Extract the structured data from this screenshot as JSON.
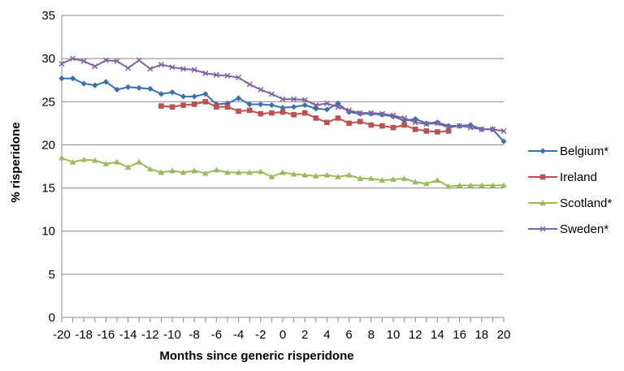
{
  "chart_data": {
    "type": "line",
    "xlabel": "Months since generic risperidone",
    "ylabel": "% risperidone",
    "ylim": [
      0,
      35
    ],
    "yticks": [
      0,
      5,
      10,
      15,
      20,
      25,
      30,
      35
    ],
    "xlim": [
      -20,
      20
    ],
    "xticks": [
      -20,
      -18,
      -16,
      -14,
      -12,
      -10,
      -8,
      -6,
      -4,
      -2,
      0,
      2,
      4,
      6,
      8,
      10,
      12,
      14,
      16,
      18,
      20
    ],
    "grid": "horizontal",
    "legend_position": "right",
    "series": [
      {
        "name": "Belgium*",
        "color": "#3c6fae",
        "marker": "diamond",
        "x": [
          -20,
          -19,
          -18,
          -17,
          -16,
          -15,
          -14,
          -13,
          -12,
          -11,
          -10,
          -9,
          -8,
          -7,
          -6,
          -5,
          -4,
          -3,
          -2,
          -1,
          0,
          1,
          2,
          3,
          4,
          5,
          6,
          7,
          8,
          9,
          10,
          11,
          12,
          13,
          14,
          15,
          16,
          17,
          18,
          19,
          20
        ],
        "values": [
          27.7,
          27.7,
          27.1,
          26.9,
          27.3,
          26.4,
          26.7,
          26.6,
          26.5,
          25.9,
          26.1,
          25.6,
          25.6,
          25.9,
          24.7,
          24.8,
          25.4,
          24.7,
          24.7,
          24.6,
          24.3,
          24.4,
          24.6,
          24.2,
          24.1,
          24.8,
          23.8,
          23.6,
          23.6,
          23.5,
          23.3,
          22.8,
          23.0,
          22.5,
          22.6,
          22.2,
          22.2,
          22.3,
          21.8,
          21.8,
          20.4
        ]
      },
      {
        "name": "Ireland",
        "color": "#c0504d",
        "marker": "square",
        "x": [
          -11,
          -10,
          -9,
          -8,
          -7,
          -6,
          -5,
          -4,
          -3,
          -2,
          -1,
          0,
          1,
          2,
          3,
          4,
          5,
          6,
          7,
          8,
          9,
          10,
          11,
          12,
          13,
          14,
          15
        ],
        "values": [
          24.5,
          24.4,
          24.6,
          24.7,
          25.0,
          24.4,
          24.4,
          23.9,
          24.0,
          23.6,
          23.7,
          23.8,
          23.5,
          23.7,
          23.1,
          22.6,
          23.1,
          22.5,
          22.7,
          22.3,
          22.2,
          22.0,
          22.3,
          21.8,
          21.6,
          21.5,
          21.6
        ]
      },
      {
        "name": "Scotland*",
        "color": "#9bbb59",
        "marker": "triangle",
        "x": [
          -20,
          -19,
          -18,
          -17,
          -16,
          -15,
          -14,
          -13,
          -12,
          -11,
          -10,
          -9,
          -8,
          -7,
          -6,
          -5,
          -4,
          -3,
          -2,
          -1,
          0,
          1,
          2,
          3,
          4,
          5,
          6,
          7,
          8,
          9,
          10,
          11,
          12,
          13,
          14,
          15,
          16,
          17,
          18,
          19,
          20
        ],
        "values": [
          18.5,
          18.0,
          18.3,
          18.2,
          17.8,
          18.0,
          17.4,
          18.0,
          17.2,
          16.8,
          17.0,
          16.8,
          17.0,
          16.7,
          17.1,
          16.8,
          16.8,
          16.8,
          16.9,
          16.3,
          16.8,
          16.6,
          16.5,
          16.4,
          16.5,
          16.3,
          16.5,
          16.1,
          16.1,
          15.9,
          16.0,
          16.1,
          15.7,
          15.5,
          15.9,
          15.2,
          15.3,
          15.3,
          15.3,
          15.3,
          15.3
        ]
      },
      {
        "name": "Sweden*",
        "color": "#8064a2",
        "marker": "x",
        "x": [
          -20,
          -19,
          -18,
          -17,
          -16,
          -15,
          -14,
          -13,
          -12,
          -11,
          -10,
          -9,
          -8,
          -7,
          -6,
          -5,
          -4,
          -3,
          -2,
          -1,
          0,
          1,
          2,
          3,
          4,
          5,
          6,
          7,
          8,
          9,
          10,
          11,
          12,
          13,
          14,
          15,
          16,
          17,
          18,
          19,
          20
        ],
        "values": [
          29.4,
          30.0,
          29.7,
          29.1,
          29.8,
          29.7,
          28.9,
          29.8,
          28.8,
          29.3,
          29.0,
          28.8,
          28.7,
          28.3,
          28.1,
          28.0,
          27.8,
          27.0,
          26.4,
          25.9,
          25.3,
          25.3,
          25.2,
          24.6,
          24.8,
          24.4,
          24.0,
          23.7,
          23.7,
          23.6,
          23.4,
          23.1,
          22.6,
          22.4,
          22.5,
          22.0,
          22.2,
          22.0,
          21.8,
          21.8,
          21.6
        ]
      }
    ]
  }
}
